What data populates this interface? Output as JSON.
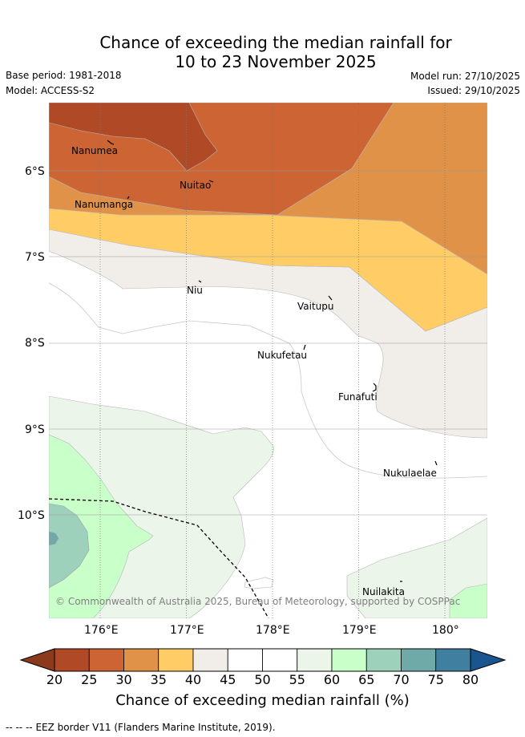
{
  "header": {
    "title_line1": "Chance of exceeding the median rainfall for",
    "title_line2": "10 to 23 November 2025",
    "base_period": "Base period: 1981-2018",
    "model": "Model: ACCESS-S2",
    "model_run": "Model run: 27/10/2025",
    "issued": "Issued: 29/10/2025"
  },
  "map": {
    "lat_ticks": [
      "6°S",
      "7°S",
      "8°S",
      "9°S",
      "10°S"
    ],
    "lon_ticks": [
      "176°E",
      "177°E",
      "178°E",
      "179°E",
      "180°"
    ],
    "places": [
      {
        "name": "Nanumea"
      },
      {
        "name": "Nuitao"
      },
      {
        "name": "Nanumanga"
      },
      {
        "name": "Niu"
      },
      {
        "name": "Vaitupu"
      },
      {
        "name": "Nukufetau"
      },
      {
        "name": "Funafuti"
      },
      {
        "name": "Nukulaelae"
      },
      {
        "name": "Nuilakita"
      }
    ],
    "copyright": "© Commonwealth of Australia 2025, Bureau of Meteorology, supported by COSPPac"
  },
  "colorbar": {
    "ticks": [
      "20",
      "25",
      "30",
      "35",
      "40",
      "45",
      "50",
      "55",
      "60",
      "65",
      "70",
      "75",
      "80"
    ],
    "colors": [
      "#b04a26",
      "#cc6434",
      "#e09248",
      "#ffcc66",
      "#f1ede8",
      "#ffffff",
      "#ffffff",
      "#ebf5e9",
      "#c9ffc9",
      "#9dd1bb",
      "#70aaa8",
      "#417fa0"
    ],
    "under_color": "#8c3a1c",
    "over_color": "#1a5590",
    "label": "Chance of exceeding median rainfall (%)"
  },
  "legend": {
    "eez_symbol": "-- -- --",
    "eez_text": "EEZ border V11 (Flanders Marine Institute, 2019)."
  }
}
